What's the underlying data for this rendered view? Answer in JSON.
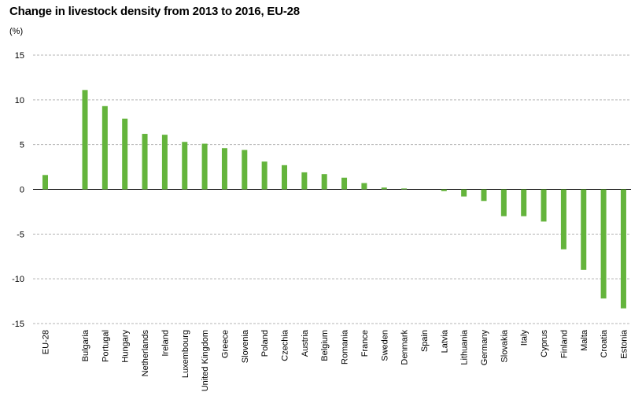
{
  "chart_data": {
    "type": "bar",
    "title": "Change in livestock density from 2013 to 2016, EU-28",
    "unit_label": "(%)",
    "xlabel": "",
    "ylabel": "",
    "ylim": [
      -15,
      15
    ],
    "yticks": [
      15,
      10,
      5,
      0,
      -5,
      -10,
      -15
    ],
    "yticks_labels": [
      "15",
      "10",
      "5",
      "0",
      "-5",
      "-10",
      "-15"
    ],
    "grid": true,
    "bar_color": "#64b43c",
    "categories": [
      "EU-28",
      "Bulgaria",
      "Portugal",
      "Hungary",
      "Netherlands",
      "Ireland",
      "Luxembourg",
      "United Kingdom",
      "Greece",
      "Slovenia",
      "Poland",
      "Czechia",
      "Austria",
      "Belgium",
      "Romania",
      "France",
      "Sweden",
      "Denmark",
      "Spain",
      "Latvia",
      "Lithuania",
      "Germany",
      "Slovakia",
      "Italy",
      "Cyprus",
      "Finland",
      "Malta",
      "Croatia",
      "Estonia"
    ],
    "values": [
      1.6,
      11.1,
      9.3,
      7.9,
      6.2,
      6.1,
      5.3,
      5.1,
      4.6,
      4.4,
      3.1,
      2.7,
      1.9,
      1.7,
      1.3,
      0.7,
      0.2,
      0.1,
      0.0,
      -0.2,
      -0.8,
      -1.3,
      -3.0,
      -3.0,
      -3.6,
      -6.7,
      -9.0,
      -12.2,
      -13.3
    ]
  }
}
